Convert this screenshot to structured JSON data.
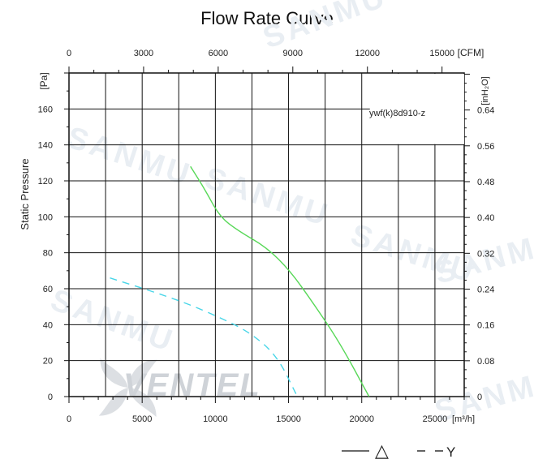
{
  "chart_data": {
    "type": "line",
    "title": "Flow Rate Curve",
    "model_label": "ywf(k)8d910-z",
    "ylabel": "Static Pressure",
    "y_unit": "[Pa]",
    "y2_unit": "[inH₂O]",
    "x_unit": "[m³/h]",
    "x2_unit": "[CFM]",
    "xlim": [
      0,
      27000
    ],
    "ylim": [
      0,
      180
    ],
    "x_ticks": [
      0,
      5000,
      10000,
      15000,
      20000,
      25000
    ],
    "x_tick_labels": [
      "0",
      "5000",
      "10000",
      "15000",
      "20000",
      "25000"
    ],
    "y_ticks": [
      0,
      20,
      40,
      60,
      80,
      100,
      120,
      140,
      160
    ],
    "y_tick_labels": [
      "0",
      "20",
      "40",
      "60",
      "80",
      "100",
      "120",
      "140",
      "160"
    ],
    "x2_ticks": [
      0,
      3000,
      6000,
      9000,
      12000,
      15000
    ],
    "x2_tick_labels": [
      "0",
      "3000",
      "6000",
      "9000",
      "12000",
      "15000"
    ],
    "y2_ticks": [
      0,
      0.08,
      0.16,
      0.24,
      0.32,
      0.4,
      0.48,
      0.56,
      0.64
    ],
    "y2_tick_labels": [
      "0",
      "0.08",
      "0.16",
      "0.24",
      "0.32",
      "0.40",
      "0.48",
      "0.56",
      "0.64"
    ],
    "grid": true,
    "series": [
      {
        "name": "△",
        "line_style": "solid",
        "color": "#58d858",
        "x": [
          8300,
          9300,
          10300,
          11600,
          13500,
          15100,
          16600,
          18500,
          20500
        ],
        "y": [
          128,
          115,
          100,
          92,
          83,
          70,
          53,
          30,
          0
        ]
      },
      {
        "name": "Y",
        "line_style": "dashed",
        "color": "#49d6e8",
        "x": [
          2800,
          5500,
          8000,
          10300,
          12300,
          14200,
          15600
        ],
        "y": [
          66,
          59,
          52,
          44,
          36,
          23,
          0
        ]
      }
    ],
    "legend_position": "bottom-right"
  },
  "watermarks": {
    "brand": "VENTEL",
    "background": "SANMU"
  }
}
